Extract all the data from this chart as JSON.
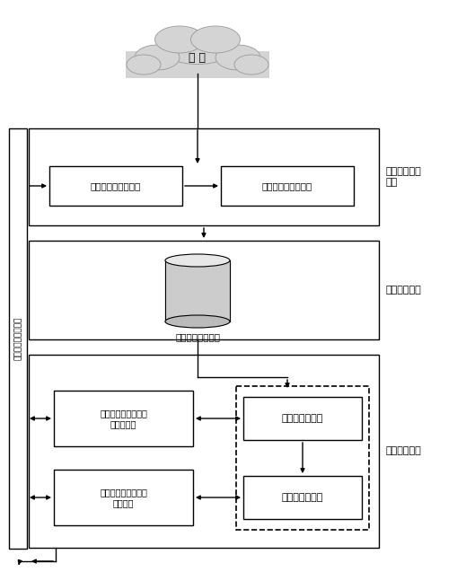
{
  "bg_color": "#ffffff",
  "cloud_label": "网 络",
  "module1_label": "数据获取归一\n模块",
  "module2_label": "数据存储模块",
  "module3_label": "应用分析模块",
  "left_module_label": "用户交互与展示模块",
  "box1_label": "网络数据爬取子单元",
  "box2_label": "网页数据归一子单元",
  "db_label": "归一化网页数据库",
  "box3_label": "话题活跃度分析与可\n视化子单元",
  "box4_label": "社团结构挖掘与可视\n化子单元",
  "box5_label": "网页聚类子单元",
  "box6_label": "热点挖掘子单元"
}
